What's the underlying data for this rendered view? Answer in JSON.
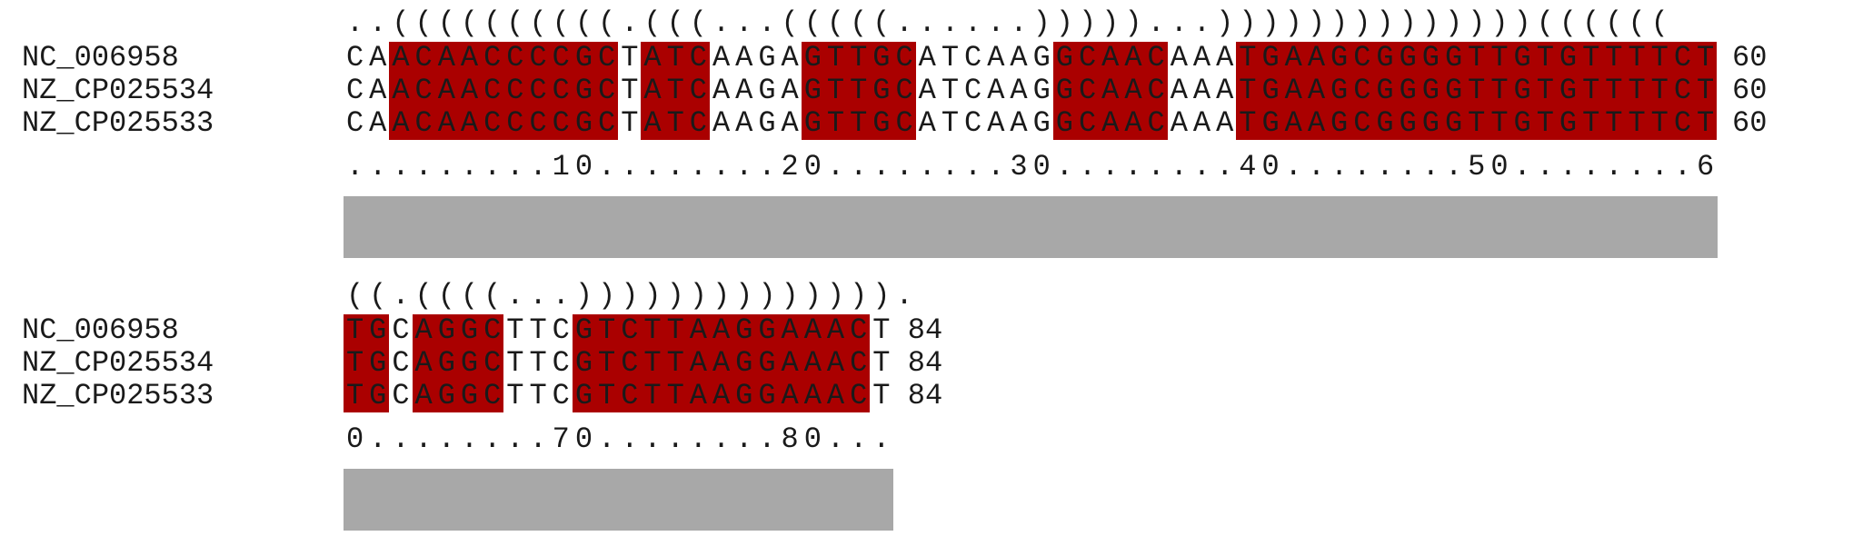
{
  "blocks": [
    {
      "structure": "..((((((((((.(((...(((((......)))))...))))))))))))))((((((",
      "ruler": ".........10........20........30........40........50........6",
      "end_position": "60",
      "rows": [
        {
          "name": "NC_006958",
          "sequence": "CAACAACCCCGCTATCAAGAGTTGCATCAAGGCAACAAATGAAGCGGGGTTGTGTTTTCT"
        },
        {
          "name": "NZ_CP025534",
          "sequence": "CAACAACCCCGCTATCAAGAGTTGCATCAAGGCAACAAATGAAGCGGGGTTGTGTTTTCT"
        },
        {
          "name": "NZ_CP025533",
          "sequence": "CAACAACCCCGCTATCAAGAGTTGCATCAAGGCAACAAATGAAGCGGGGTTGTGTTTTCT"
        }
      ],
      "highlight_ranges": [
        [
          2,
          12
        ],
        [
          13,
          16
        ],
        [
          20,
          25
        ],
        [
          31,
          36
        ],
        [
          39,
          60
        ]
      ],
      "conservation": 1.0
    },
    {
      "structure": "((.((((...)))))))))))))).",
      "ruler": "0........70........80...",
      "end_position": "84",
      "rows": [
        {
          "name": "NC_006958",
          "sequence": "TGCAGGCTTCGTCTTAAGGAAACT"
        },
        {
          "name": "NZ_CP025534",
          "sequence": "TGCAGGCTTCGTCTTAAGGAAACT"
        },
        {
          "name": "NZ_CP025533",
          "sequence": "TGCAGGCTTCGTCTTAAGGAAACT"
        }
      ],
      "highlight_ranges": [
        [
          0,
          2
        ],
        [
          3,
          7
        ],
        [
          10,
          23
        ]
      ],
      "conservation": 1.0
    }
  ],
  "colors": {
    "paired_base": "#aa0000",
    "conservation_bar": "#a8a8a8",
    "text": "#1a1a1a"
  }
}
